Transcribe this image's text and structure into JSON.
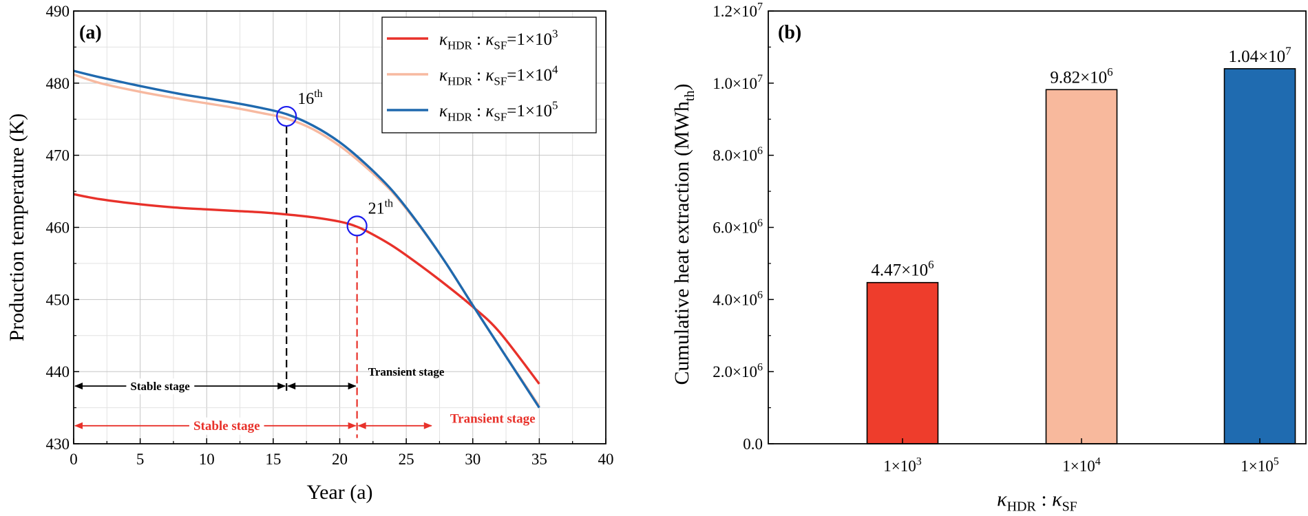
{
  "chart_data": [
    {
      "panel": "(a)",
      "type": "line",
      "xlabel": "Year (a)",
      "ylabel": "Production temperature (K)",
      "xlim": [
        0,
        40
      ],
      "ylim": [
        430,
        490
      ],
      "xticks": [
        "0",
        "5",
        "10",
        "15",
        "20",
        "25",
        "30",
        "35",
        "40"
      ],
      "yticks": [
        "430",
        "440",
        "450",
        "460",
        "470",
        "480",
        "490"
      ],
      "grid": true,
      "legend_position": "top-right",
      "series": [
        {
          "name": "κHDR : κSF=1×10^3",
          "legend": {
            "k1": "κ",
            "s1": "HDR",
            "mid": " : ",
            "k2": "κ",
            "s2": "SF",
            "eq": "=1×10",
            "exp": "3"
          },
          "color": "#e8312a",
          "x": [
            0,
            2,
            5,
            8,
            10,
            12,
            14,
            16,
            18,
            20,
            21,
            22,
            24,
            26,
            28,
            30,
            32,
            35
          ],
          "y": [
            464.6,
            463.9,
            463.2,
            462.7,
            462.5,
            462.3,
            462.1,
            461.8,
            461.4,
            460.8,
            460.3,
            459.5,
            457.4,
            454.8,
            452.0,
            449.0,
            445.5,
            438.3
          ]
        },
        {
          "name": "κHDR : κSF=1×10^4",
          "legend": {
            "k1": "κ",
            "s1": "HDR",
            "mid": " : ",
            "k2": "κ",
            "s2": "SF",
            "eq": "=1×10",
            "exp": "4"
          },
          "color": "#f7b9a0",
          "x": [
            0,
            2,
            5,
            8,
            10,
            12,
            14,
            16,
            18,
            20,
            22,
            24,
            26,
            28,
            30,
            32,
            35
          ],
          "y": [
            481.2,
            480.0,
            478.8,
            477.8,
            477.2,
            476.6,
            475.9,
            475.1,
            473.6,
            471.3,
            468.3,
            464.8,
            460.2,
            455.0,
            449.2,
            443.5,
            435.2
          ]
        },
        {
          "name": "κHDR : κSF=1×10^5",
          "legend": {
            "k1": "κ",
            "s1": "HDR",
            "mid": " : ",
            "k2": "κ",
            "s2": "SF",
            "eq": "=1×10",
            "exp": "5"
          },
          "color": "#1f69ae",
          "x": [
            0,
            2,
            5,
            8,
            10,
            12,
            14,
            16,
            18,
            20,
            22,
            24,
            26,
            28,
            30,
            32,
            35
          ],
          "y": [
            481.7,
            480.8,
            479.6,
            478.5,
            477.9,
            477.3,
            476.6,
            475.7,
            474.1,
            471.8,
            468.7,
            465.0,
            460.3,
            455.0,
            449.2,
            443.5,
            435.0
          ]
        }
      ],
      "annotations": [
        {
          "label_pre": "16",
          "label_sup": "th",
          "x": 16,
          "y": 475.4,
          "color": "#1a1aee",
          "guide_color": "#000000"
        },
        {
          "label_pre": "21",
          "label_sup": "th",
          "x": 21.3,
          "y": 460.2,
          "color": "#1a1aee",
          "guide_color": "#e8312a"
        }
      ],
      "stage_arrows": [
        {
          "label": "Stable stage",
          "color": "#000000",
          "x_from": 0,
          "x_to": 16,
          "y": 438.0,
          "label_x": 6.5,
          "label_y": 438.0
        },
        {
          "label": "Transient stage",
          "color": "#000000",
          "x_from": 16,
          "x_to": 21.3,
          "y": 438.0,
          "label_x": 25.0,
          "label_y": 440.0
        },
        {
          "label": "Stable stage",
          "color": "#e8312a",
          "x_from": 0,
          "x_to": 21.3,
          "y": 432.5,
          "label_x": 11.5,
          "label_y": 432.5
        },
        {
          "label": "Transient stage",
          "color": "#e8312a",
          "x_from": 21.3,
          "x_to": 27.0,
          "y": 432.5,
          "label_x": 31.5,
          "label_y": 433.5
        }
      ]
    },
    {
      "panel": "(b)",
      "type": "bar",
      "xlabel_parts": {
        "k1": "κ",
        "s1": "HDR",
        "mid": " : ",
        "k2": "κ",
        "s2": "SF"
      },
      "ylabel_parts": {
        "main": "Cumulative heat extraction (MWh",
        "sub": "th",
        "end": ")"
      },
      "ylim": [
        0,
        12000000
      ],
      "yticks": [
        {
          "value": 0,
          "mant": "0.0",
          "exp": ""
        },
        {
          "value": 2000000,
          "mant": "2.0×10",
          "exp": "6"
        },
        {
          "value": 4000000,
          "mant": "4.0×10",
          "exp": "6"
        },
        {
          "value": 6000000,
          "mant": "6.0×10",
          "exp": "6"
        },
        {
          "value": 8000000,
          "mant": "8.0×10",
          "exp": "6"
        },
        {
          "value": 10000000,
          "mant": "1.0×10",
          "exp": "7"
        },
        {
          "value": 12000000,
          "mant": "1.2×10",
          "exp": "7"
        }
      ],
      "categories": [
        {
          "mant": "1×10",
          "exp": "3"
        },
        {
          "mant": "1×10",
          "exp": "4"
        },
        {
          "mant": "1×10",
          "exp": "5"
        }
      ],
      "values": [
        4470000,
        9820000,
        10400000
      ],
      "data_labels": [
        {
          "mant": "4.47×10",
          "exp": "6"
        },
        {
          "mant": "9.82×10",
          "exp": "6"
        },
        {
          "mant": "1.04×10",
          "exp": "7"
        }
      ],
      "colors": [
        "#ee3d2c",
        "#f8b99d",
        "#1f6bb0"
      ]
    }
  ]
}
